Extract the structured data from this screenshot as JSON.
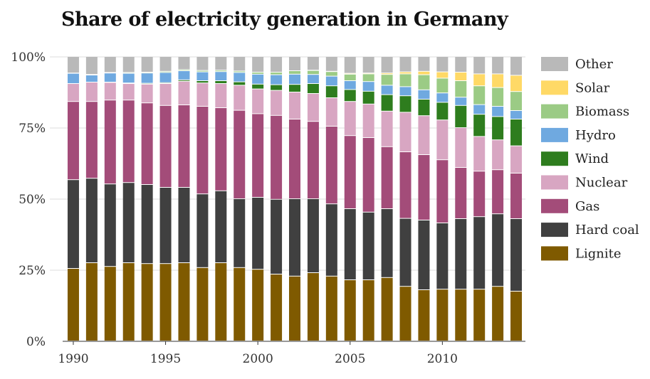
{
  "chart_data": {
    "type": "bar",
    "stacked": true,
    "title": "Share of electricity generation in Germany",
    "xlabel": "",
    "ylabel": "",
    "ylim": [
      0,
      100
    ],
    "grid": true,
    "legend_position": "right",
    "categories": [
      1990,
      1991,
      1992,
      1993,
      1994,
      1995,
      1996,
      1997,
      1998,
      1999,
      2000,
      2001,
      2002,
      2003,
      2004,
      2005,
      2006,
      2007,
      2008,
      2009,
      2010,
      2011,
      2012,
      2013,
      2014
    ],
    "x_ticks": [
      "1990",
      "1995",
      "2000",
      "2005",
      "2010"
    ],
    "y_ticks": [
      "0%",
      "25%",
      "50%",
      "75%",
      "100%"
    ],
    "series": [
      {
        "name": "Lignite",
        "color": "#7f5a00",
        "values": [
          25.5,
          27.5,
          26.2,
          27.5,
          27.2,
          27.2,
          27.5,
          25.8,
          27.5,
          25.8,
          25.2,
          23.5,
          22.8,
          24.0,
          22.8,
          21.5,
          21.5,
          22.3,
          19.2,
          18.0,
          18.2,
          18.2,
          18.2,
          19.2,
          17.5
        ]
      },
      {
        "name": "Hard coal",
        "color": "#404040",
        "values": [
          31.2,
          29.7,
          29.0,
          28.2,
          27.8,
          26.8,
          26.5,
          25.9,
          25.3,
          24.2,
          25.3,
          26.3,
          27.2,
          26.0,
          25.4,
          25.0,
          23.8,
          24.2,
          23.9,
          24.5,
          23.3,
          24.8,
          25.5,
          25.5,
          25.5
        ]
      },
      {
        "name": "Gas",
        "color": "#a34c79",
        "values": [
          27.5,
          27.0,
          29.5,
          29.0,
          28.7,
          28.8,
          29.0,
          30.8,
          29.2,
          31.1,
          29.4,
          29.5,
          28.0,
          27.2,
          27.3,
          25.7,
          26.2,
          21.8,
          23.4,
          23.0,
          22.2,
          18.0,
          16.0,
          15.5,
          16.0
        ]
      },
      {
        "name": "Nuclear",
        "color": "#d8a6c2",
        "values": [
          6.3,
          6.8,
          6.2,
          5.8,
          6.6,
          7.7,
          8.3,
          8.2,
          8.5,
          8.8,
          8.7,
          8.8,
          9.5,
          9.8,
          10.0,
          12.0,
          11.8,
          12.5,
          13.9,
          13.7,
          14.0,
          14.0,
          12.2,
          10.5,
          9.6
        ]
      },
      {
        "name": "Wind",
        "color": "#2e7d1e",
        "values": [
          0.0,
          0.0,
          0.1,
          0.2,
          0.3,
          0.3,
          0.5,
          0.8,
          1.0,
          1.2,
          1.7,
          2.0,
          2.7,
          3.5,
          4.2,
          4.2,
          4.5,
          5.8,
          5.8,
          5.8,
          6.2,
          7.8,
          7.8,
          8.2,
          9.4
        ]
      },
      {
        "name": "Hydro",
        "color": "#6fa9e0",
        "values": [
          3.6,
          2.5,
          3.2,
          3.4,
          3.6,
          3.6,
          3.2,
          3.1,
          3.2,
          3.3,
          3.5,
          3.5,
          3.6,
          3.2,
          3.4,
          3.1,
          3.4,
          3.3,
          3.2,
          3.3,
          3.3,
          2.9,
          3.4,
          3.6,
          3.0
        ]
      },
      {
        "name": "Biomass",
        "color": "#9bcb85",
        "values": [
          0.1,
          0.2,
          0.2,
          0.3,
          0.3,
          0.4,
          0.4,
          0.5,
          0.5,
          0.5,
          0.7,
          0.9,
          1.2,
          1.4,
          1.6,
          2.3,
          2.7,
          3.8,
          4.5,
          5.3,
          5.2,
          5.8,
          6.6,
          6.6,
          6.7
        ]
      },
      {
        "name": "Solar",
        "color": "#ffd966",
        "values": [
          0.0,
          0.0,
          0.0,
          0.0,
          0.0,
          0.0,
          0.0,
          0.0,
          0.0,
          0.0,
          0.0,
          0.0,
          0.0,
          0.1,
          0.1,
          0.3,
          0.3,
          0.5,
          0.7,
          1.2,
          2.2,
          3.0,
          4.2,
          4.8,
          5.7
        ]
      },
      {
        "name": "Other",
        "color": "#b9b9b9",
        "values": [
          5.8,
          6.3,
          5.6,
          5.6,
          5.5,
          5.2,
          4.6,
          4.9,
          4.8,
          5.1,
          5.5,
          5.5,
          5.0,
          4.8,
          5.2,
          5.9,
          5.8,
          5.8,
          5.4,
          5.2,
          5.4,
          5.5,
          6.1,
          6.1,
          6.6
        ]
      }
    ]
  }
}
